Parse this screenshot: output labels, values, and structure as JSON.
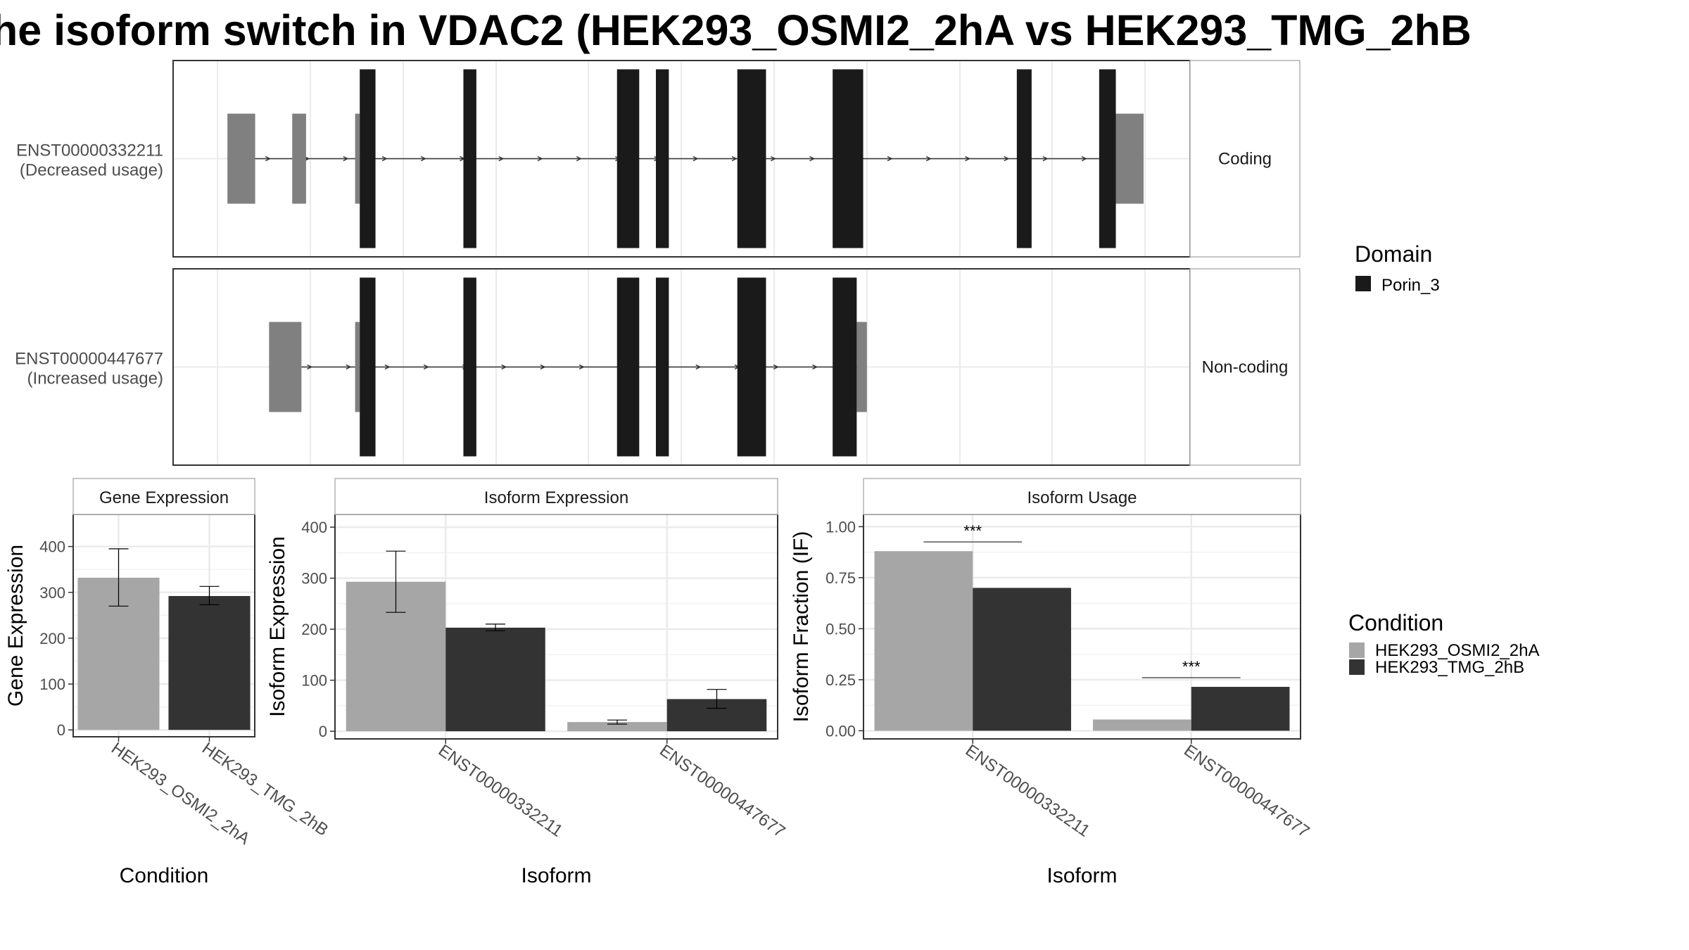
{
  "title": "he isoform switch in VDAC2 (HEK293_OSMI2_2hA vs HEK293_TMG_2hB",
  "colors": {
    "domain": "#1a1a1a",
    "utr": "#808080",
    "condition_a": "#a6a6a6",
    "condition_b": "#333333",
    "grid": "#ebebeb",
    "panel_border": "#333333",
    "strip_border": "#b3b3b3"
  },
  "chart_data": [
    {
      "type": "gene-structure",
      "tracks": [
        {
          "transcript": "ENST00000332211",
          "usage": "(Decreased usage)",
          "facet": "Coding",
          "utr_blocks": [
            [
              0.01,
              0.04
            ],
            [
              0.08,
              0.095
            ],
            [
              0.148,
              0.153
            ],
            [
              0.953,
              0.966
            ],
            [
              0.966,
              1.0
            ]
          ],
          "domain_blocks": [
            [
              0.153,
              0.17
            ],
            [
              0.265,
              0.279
            ],
            [
              0.431,
              0.455
            ],
            [
              0.473,
              0.487
            ],
            [
              0.561,
              0.592
            ],
            [
              0.664,
              0.697
            ],
            [
              0.863,
              0.879
            ],
            [
              0.952,
              0.97
            ]
          ]
        },
        {
          "transcript": "ENST00000447677",
          "usage": "(Increased usage)",
          "facet": "Non-coding",
          "utr_blocks": [
            [
              0.055,
              0.09
            ],
            [
              0.148,
              0.153
            ],
            [
              0.69,
              0.701
            ]
          ],
          "domain_blocks": [
            [
              0.153,
              0.17
            ],
            [
              0.265,
              0.279
            ],
            [
              0.431,
              0.455
            ],
            [
              0.473,
              0.487
            ],
            [
              0.561,
              0.592
            ],
            [
              0.664,
              0.69
            ]
          ]
        }
      ],
      "legend": {
        "title": "Domain",
        "items": [
          "Porin_3"
        ]
      }
    },
    {
      "type": "bar",
      "panel_title": "Gene Expression",
      "xlabel": "Condition",
      "ylabel": "Gene Expression",
      "ylim": [
        -15,
        470
      ],
      "yticks": [
        0,
        100,
        200,
        300,
        400
      ],
      "categories": [
        "HEK293_OSMI2_2hA",
        "HEK293_TMG_2hB"
      ],
      "series": [
        {
          "values": [
            332,
            292
          ],
          "err_low": [
            270,
            273
          ],
          "err_high": [
            395,
            313
          ]
        }
      ]
    },
    {
      "type": "bar",
      "panel_title": "Isoform Expression",
      "xlabel": "Isoform",
      "ylabel": "Isoform Expression",
      "ylim": [
        -15,
        425
      ],
      "yticks": [
        0,
        100,
        200,
        300,
        400
      ],
      "categories": [
        "ENST00000332211",
        "ENST00000447677"
      ],
      "series": [
        {
          "name": "HEK293_OSMI2_2hA",
          "values": [
            293,
            18
          ],
          "err_low": [
            233,
            14
          ],
          "err_high": [
            353,
            22
          ]
        },
        {
          "name": "HEK293_TMG_2hB",
          "values": [
            203,
            63
          ],
          "err_low": [
            197,
            45
          ],
          "err_high": [
            210,
            82
          ]
        }
      ]
    },
    {
      "type": "bar",
      "panel_title": "Isoform Usage",
      "xlabel": "Isoform",
      "ylabel": "Isoform Fraction (IF)",
      "ylim": [
        -0.04,
        1.06
      ],
      "yticks": [
        "0.00",
        "0.25",
        "0.50",
        "0.75",
        "1.00"
      ],
      "categories": [
        "ENST00000332211",
        "ENST00000447677"
      ],
      "series": [
        {
          "name": "HEK293_OSMI2_2hA",
          "values": [
            0.88,
            0.055
          ]
        },
        {
          "name": "HEK293_TMG_2hB",
          "values": [
            0.7,
            0.215
          ]
        }
      ],
      "significance": [
        {
          "label": "***",
          "y": 0.925
        },
        {
          "label": "***",
          "y": 0.26
        }
      ]
    }
  ],
  "condition_legend": {
    "title": "Condition",
    "items": [
      "HEK293_OSMI2_2hA",
      "HEK293_TMG_2hB"
    ]
  }
}
